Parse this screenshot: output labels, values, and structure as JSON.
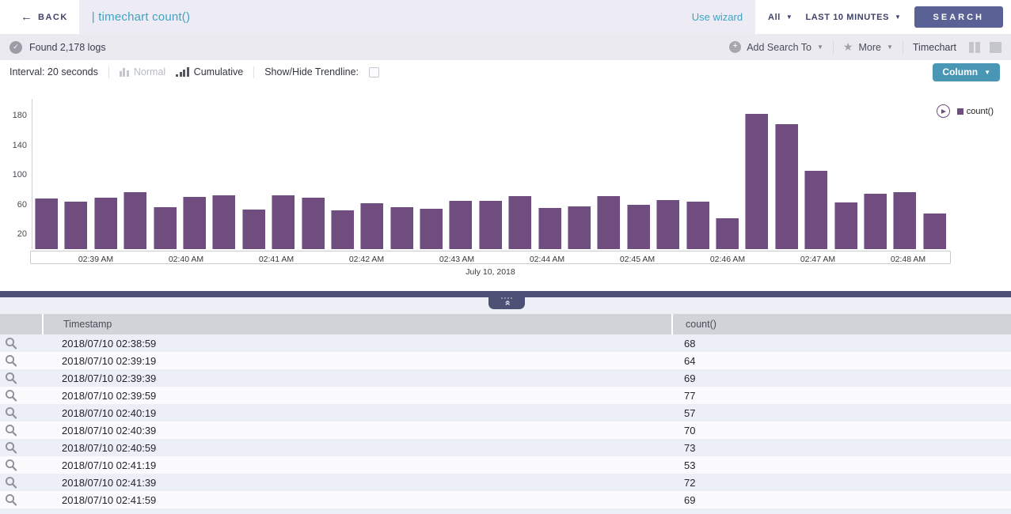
{
  "topbar": {
    "back_label": "BACK",
    "query": "| timechart count()",
    "use_wizard": "Use wizard",
    "scope_label": "All",
    "time_range_label": "LAST 10 MINUTES",
    "search_label": "SEARCH"
  },
  "statusbar": {
    "found_text": "Found 2,178 logs",
    "add_search_to_label": "Add Search To",
    "more_label": "More",
    "view_label": "Timechart"
  },
  "optionsbar": {
    "interval_label": "Interval: 20 seconds",
    "normal_label": "Normal",
    "cumulative_label": "Cumulative",
    "trendline_label": "Show/Hide Trendline:",
    "trendline_checked": false,
    "chart_type_label": "Column"
  },
  "chart_data": {
    "type": "bar",
    "series_name": "count()",
    "bar_color": "#6F4E7F",
    "interval_seconds": 20,
    "values": [
      68,
      64,
      69,
      77,
      57,
      70,
      73,
      53,
      72,
      69,
      52,
      62,
      57,
      54,
      65,
      65,
      71,
      55,
      58,
      71,
      60,
      66,
      64,
      42,
      182,
      168,
      106,
      63,
      75,
      77,
      48
    ],
    "y_ticks": [
      180,
      140,
      100,
      60,
      20
    ],
    "ylim": [
      0,
      200
    ],
    "x_tick_labels": [
      "02:39 AM",
      "02:40 AM",
      "02:41 AM",
      "02:42 AM",
      "02:43 AM",
      "02:44 AM",
      "02:45 AM",
      "02:46 AM",
      "02:47 AM",
      "02:48 AM"
    ],
    "x_axis_date": "July 10, 2018",
    "legend": [
      "count()"
    ],
    "legend_position": "top-right",
    "grid": false
  },
  "table": {
    "columns": [
      "Timestamp",
      "count()"
    ],
    "rows": [
      {
        "timestamp": "2018/07/10 02:38:59",
        "count": "68"
      },
      {
        "timestamp": "2018/07/10 02:39:19",
        "count": "64"
      },
      {
        "timestamp": "2018/07/10 02:39:39",
        "count": "69"
      },
      {
        "timestamp": "2018/07/10 02:39:59",
        "count": "77"
      },
      {
        "timestamp": "2018/07/10 02:40:19",
        "count": "57"
      },
      {
        "timestamp": "2018/07/10 02:40:39",
        "count": "70"
      },
      {
        "timestamp": "2018/07/10 02:40:59",
        "count": "73"
      },
      {
        "timestamp": "2018/07/10 02:41:19",
        "count": "53"
      },
      {
        "timestamp": "2018/07/10 02:41:39",
        "count": "72"
      },
      {
        "timestamp": "2018/07/10 02:41:59",
        "count": "69"
      }
    ]
  },
  "colors": {
    "accent_teal": "#3FA2C2",
    "button_slate": "#5A6195",
    "column_button_teal": "#4A96B5",
    "bar_purple": "#6F4E7F",
    "divider_navy": "#4D5175",
    "query_background": "#EDECF4"
  }
}
